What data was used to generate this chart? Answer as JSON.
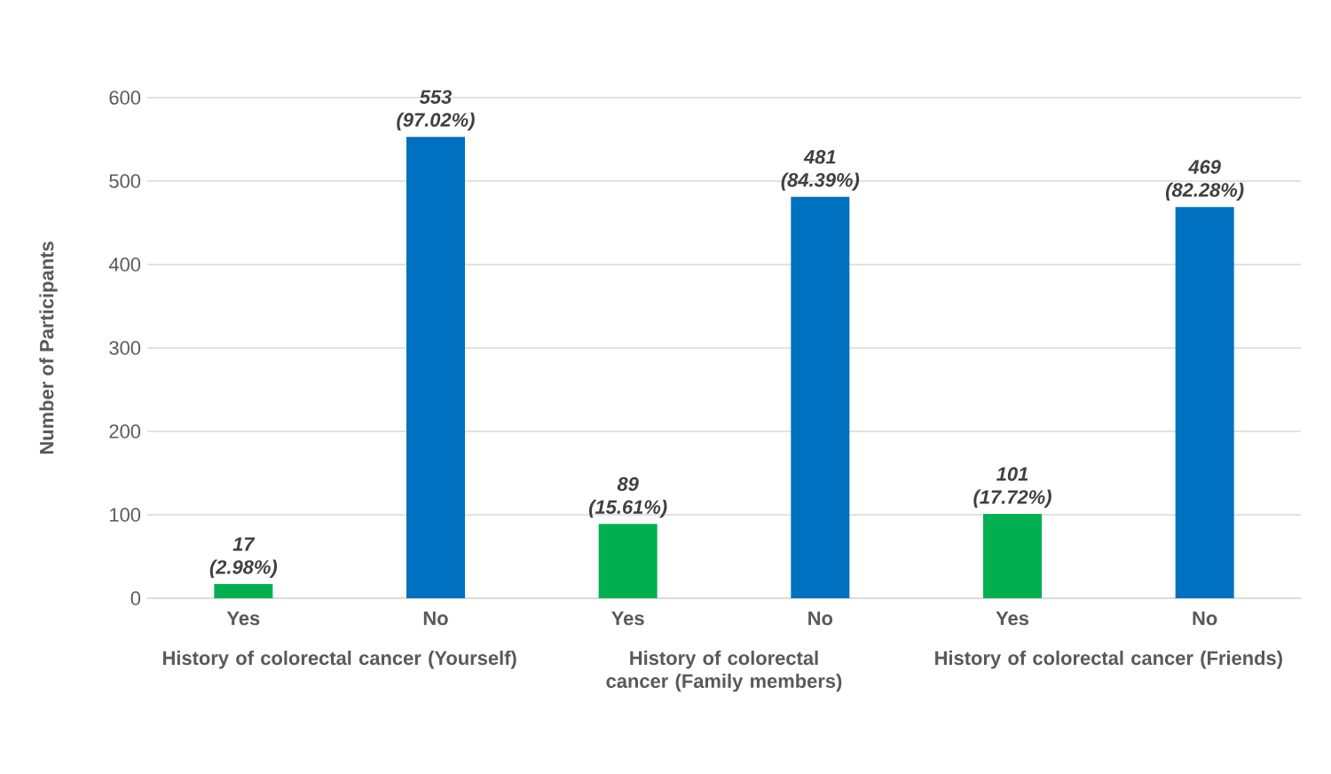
{
  "chart_data": {
    "type": "bar",
    "ylabel": "Number of Participants",
    "categories": [
      "Yes",
      "No",
      "Yes",
      "No",
      "Yes",
      "No"
    ],
    "values": [
      17,
      553,
      89,
      481,
      101,
      469
    ],
    "colors": [
      "#00b050",
      "#0070c0",
      "#00b050",
      "#0070c0",
      "#00b050",
      "#0070c0"
    ],
    "value_labels": [
      "17 (2.98%)",
      "553 (97.02%)",
      "89 (15.61%)",
      "481 (84.39%)",
      "101 (17.72%)",
      "469 (82.28%)"
    ],
    "annotations": [
      "History of colorectal cancer (Yourself)",
      "History of colorectal cancer (Family members)",
      "History of colorectal cancer (Friends)"
    ],
    "ylim": [
      0,
      600
    ],
    "yticks": [
      0,
      100,
      200,
      300,
      400,
      500,
      600
    ],
    "grid": "y"
  }
}
